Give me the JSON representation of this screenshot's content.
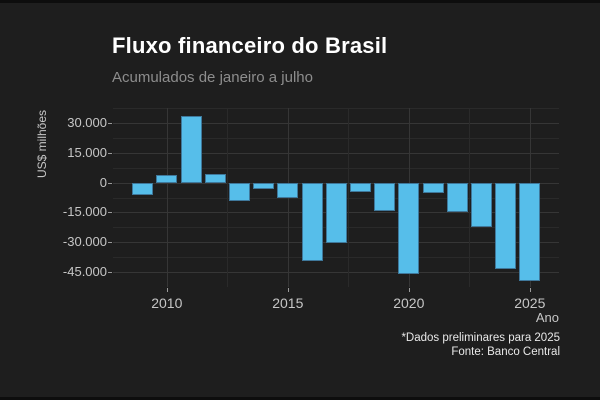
{
  "chart": {
    "title": "Fluxo financeiro do Brasil",
    "subtitle": "Acumulados de janeiro a julho",
    "caption_note": "*Dados preliminares para 2025",
    "caption_source": "Fonte: Banco Central"
  },
  "chart_data": {
    "type": "bar",
    "title": "Fluxo financeiro do Brasil",
    "subtitle": "Acumulados de janeiro a julho",
    "xlabel": "Ano",
    "ylabel": "US$ milhões",
    "categories": [
      2009,
      2010,
      2011,
      2012,
      2013,
      2014,
      2015,
      2016,
      2017,
      2018,
      2019,
      2020,
      2021,
      2022,
      2023,
      2024,
      2025
    ],
    "values": [
      -6500,
      3800,
      33300,
      4300,
      -9100,
      -3000,
      -7900,
      -39500,
      -30500,
      -5000,
      -14500,
      -45900,
      -5300,
      -15000,
      -22500,
      -43600,
      -49700
    ],
    "ylim": [
      -52500,
      37500
    ],
    "yticks": {
      "values": [
        30000,
        15000,
        0,
        -15000,
        -30000,
        -45000
      ],
      "labels": [
        "30.000",
        "15.000",
        "0",
        "-15.000",
        "-30.000",
        "-45.000"
      ]
    },
    "xticks": {
      "values": [
        2010,
        2015,
        2020,
        2025
      ],
      "labels": [
        "2010",
        "2015",
        "2020",
        "2025"
      ]
    },
    "grid": "major and minor, horizontal and vertical",
    "legend": "none",
    "caption": [
      "*Dados preliminares para 2025",
      "Fonte: Banco Central"
    ],
    "colors": {
      "background": "#1e1e1e",
      "bar_fill": "#56beea",
      "bar_border": "#3f789b",
      "grid_major": "#363636",
      "grid_minor": "#2a2a2a",
      "title_text": "#ffffff",
      "subtitle_text": "#8d8d8d",
      "tick_text": "#c6c6c6",
      "caption_text": "#e8e8e8"
    }
  }
}
